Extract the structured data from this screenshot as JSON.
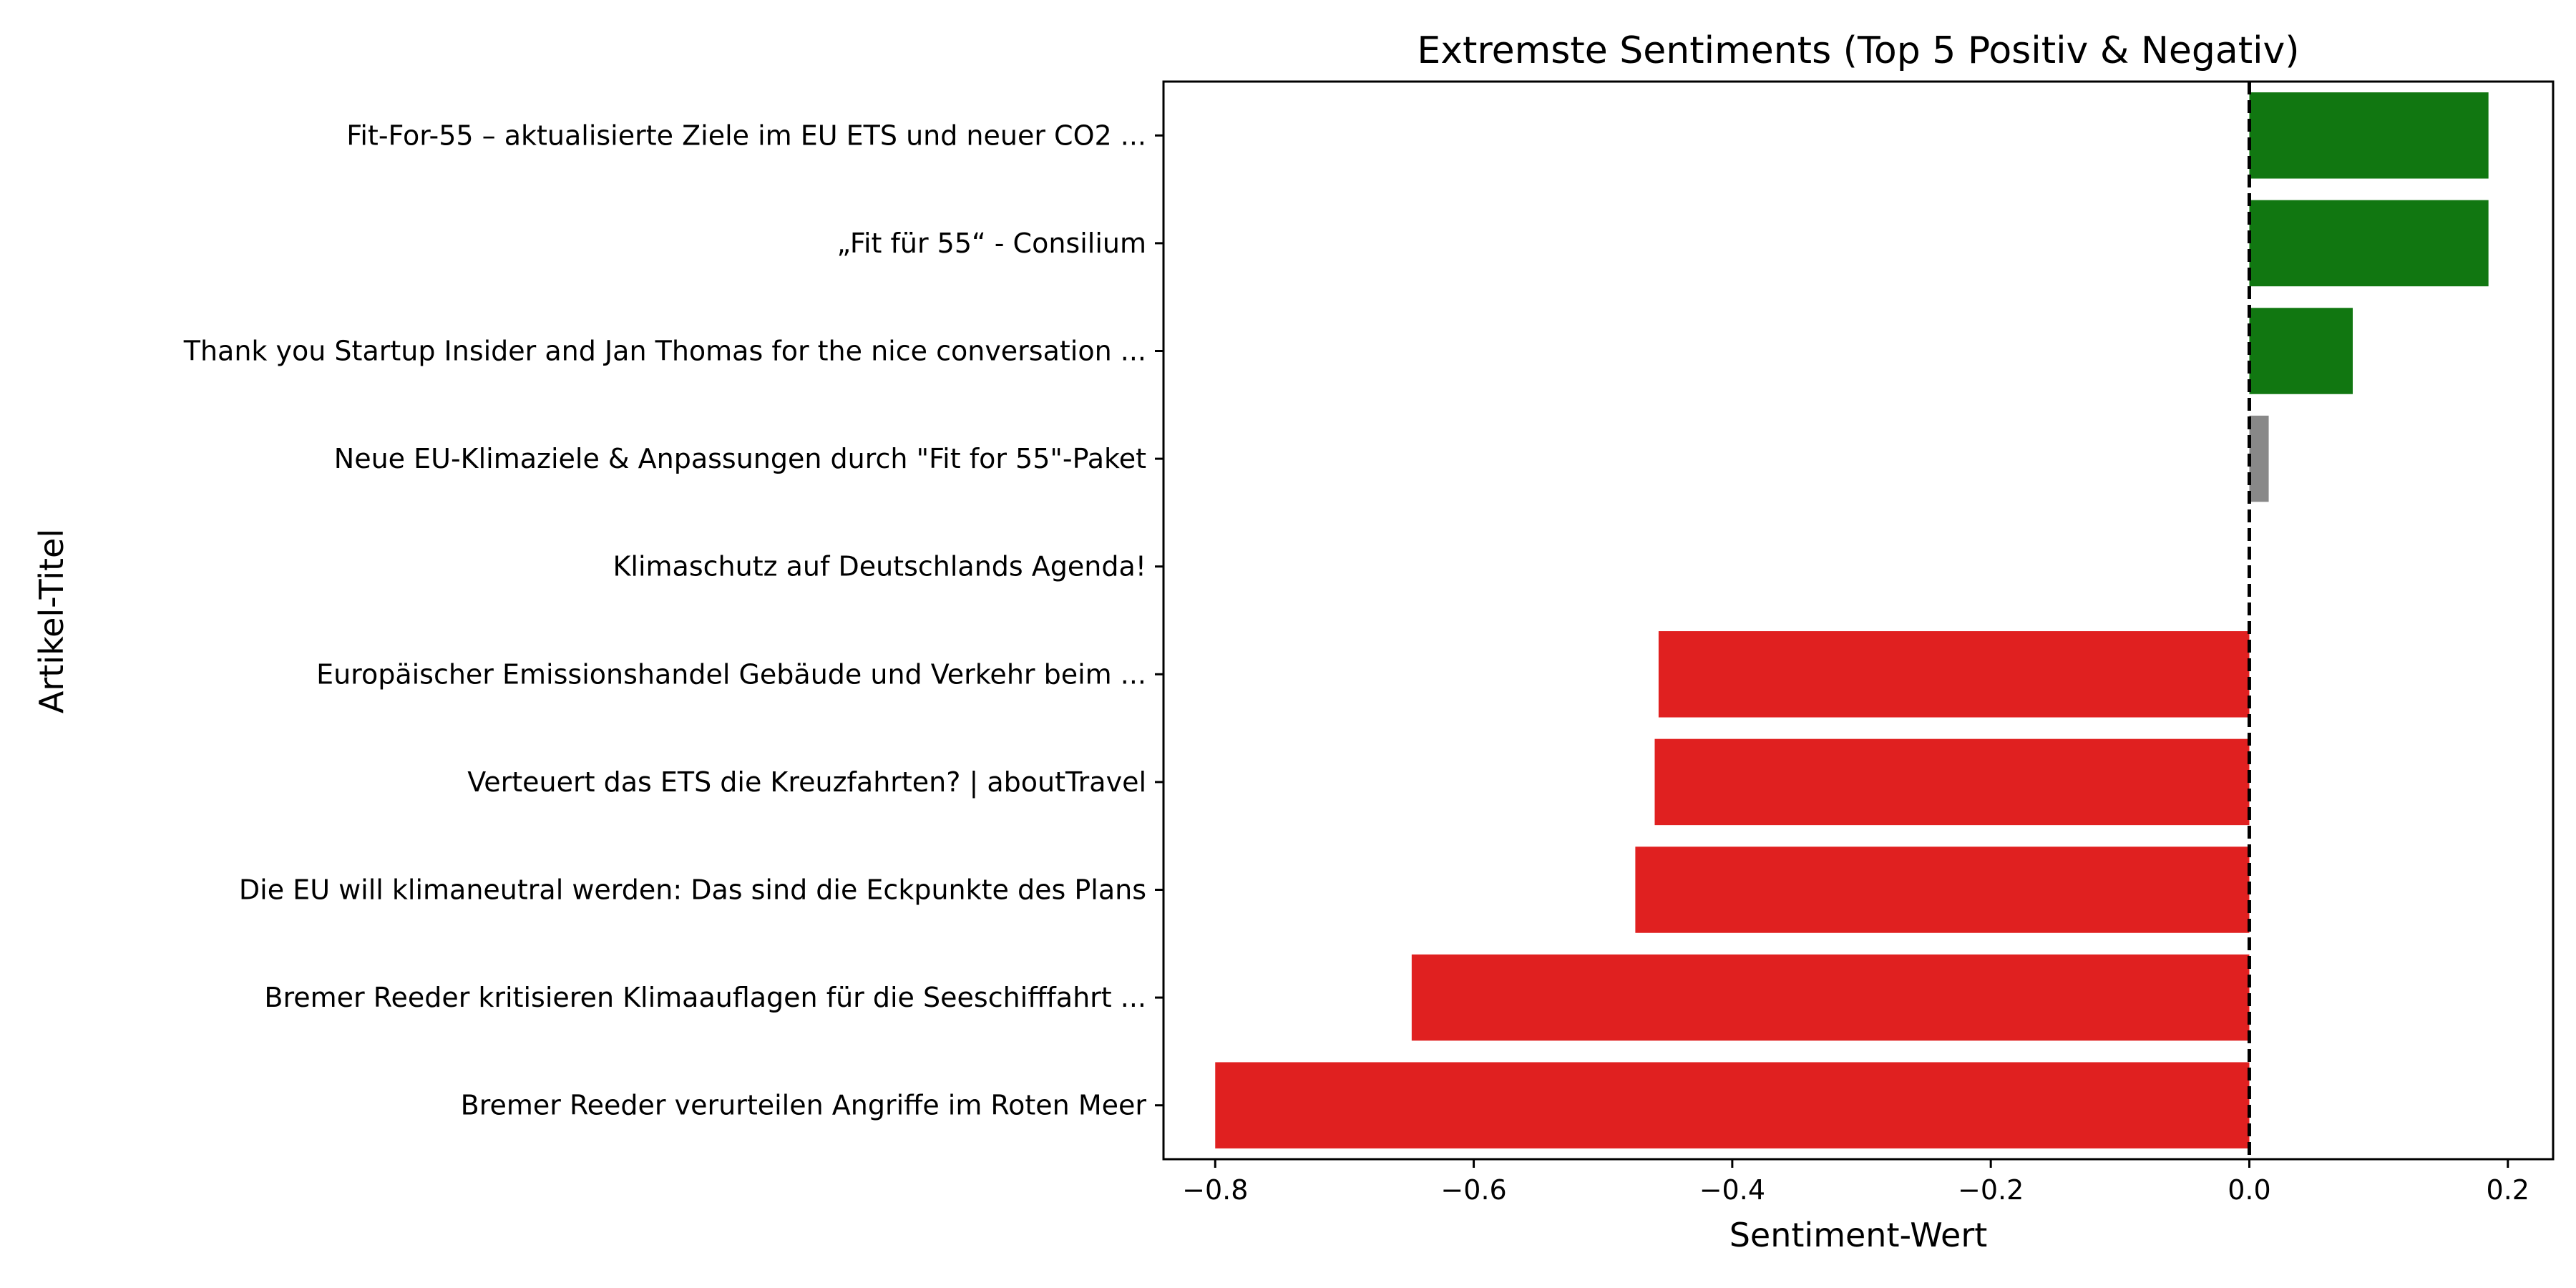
{
  "chart_data": {
    "type": "bar",
    "orientation": "horizontal",
    "title": "Extremste Sentiments (Top 5 Positiv & Negativ)",
    "xlabel": "Sentiment-Wert",
    "ylabel": "Artikel-Titel",
    "xlim": [
      -0.84,
      0.235
    ],
    "xticks": [
      -0.8,
      -0.6,
      -0.4,
      -0.2,
      0.0,
      0.2
    ],
    "xtick_labels": [
      "−0.8",
      "−0.6",
      "−0.4",
      "−0.2",
      "0.0",
      "0.2"
    ],
    "reference_line": {
      "x": 0,
      "style": "dashed",
      "color": "#000000"
    },
    "grid": false,
    "legend": "none",
    "colors": {
      "positive": "#117711",
      "neutral": "#888888",
      "negative": "#e02020"
    },
    "categories": [
      "Fit-For-55 – aktualisierte Ziele im EU ETS und neuer CO2 ...",
      "„Fit für 55“ - Consilium",
      "Thank you Startup Insider and Jan Thomas for the nice conversation ...",
      "Neue EU-Klimaziele & Anpassungen durch \"Fit for 55\"-Paket",
      "Klimaschutz auf Deutschlands Agenda!",
      "Europäischer Emissionshandel Gebäude und Verkehr beim ...",
      "Verteuert das ETS die Kreuzfahrten? | aboutTravel",
      "Die EU will klimaneutral werden: Das sind die Eckpunkte des Plans",
      "Bremer Reeder kritisieren Klimaauflagen für die Seeschifffahrt ...",
      "Bremer Reeder verurteilen Angriffe im Roten Meer"
    ],
    "values": [
      0.185,
      0.185,
      0.08,
      0.015,
      0.0,
      -0.457,
      -0.46,
      -0.475,
      -0.648,
      -0.8
    ],
    "bar_colors": [
      "#117711",
      "#117711",
      "#117711",
      "#888888",
      "#888888",
      "#e02020",
      "#e02020",
      "#e02020",
      "#e02020",
      "#e02020"
    ]
  }
}
